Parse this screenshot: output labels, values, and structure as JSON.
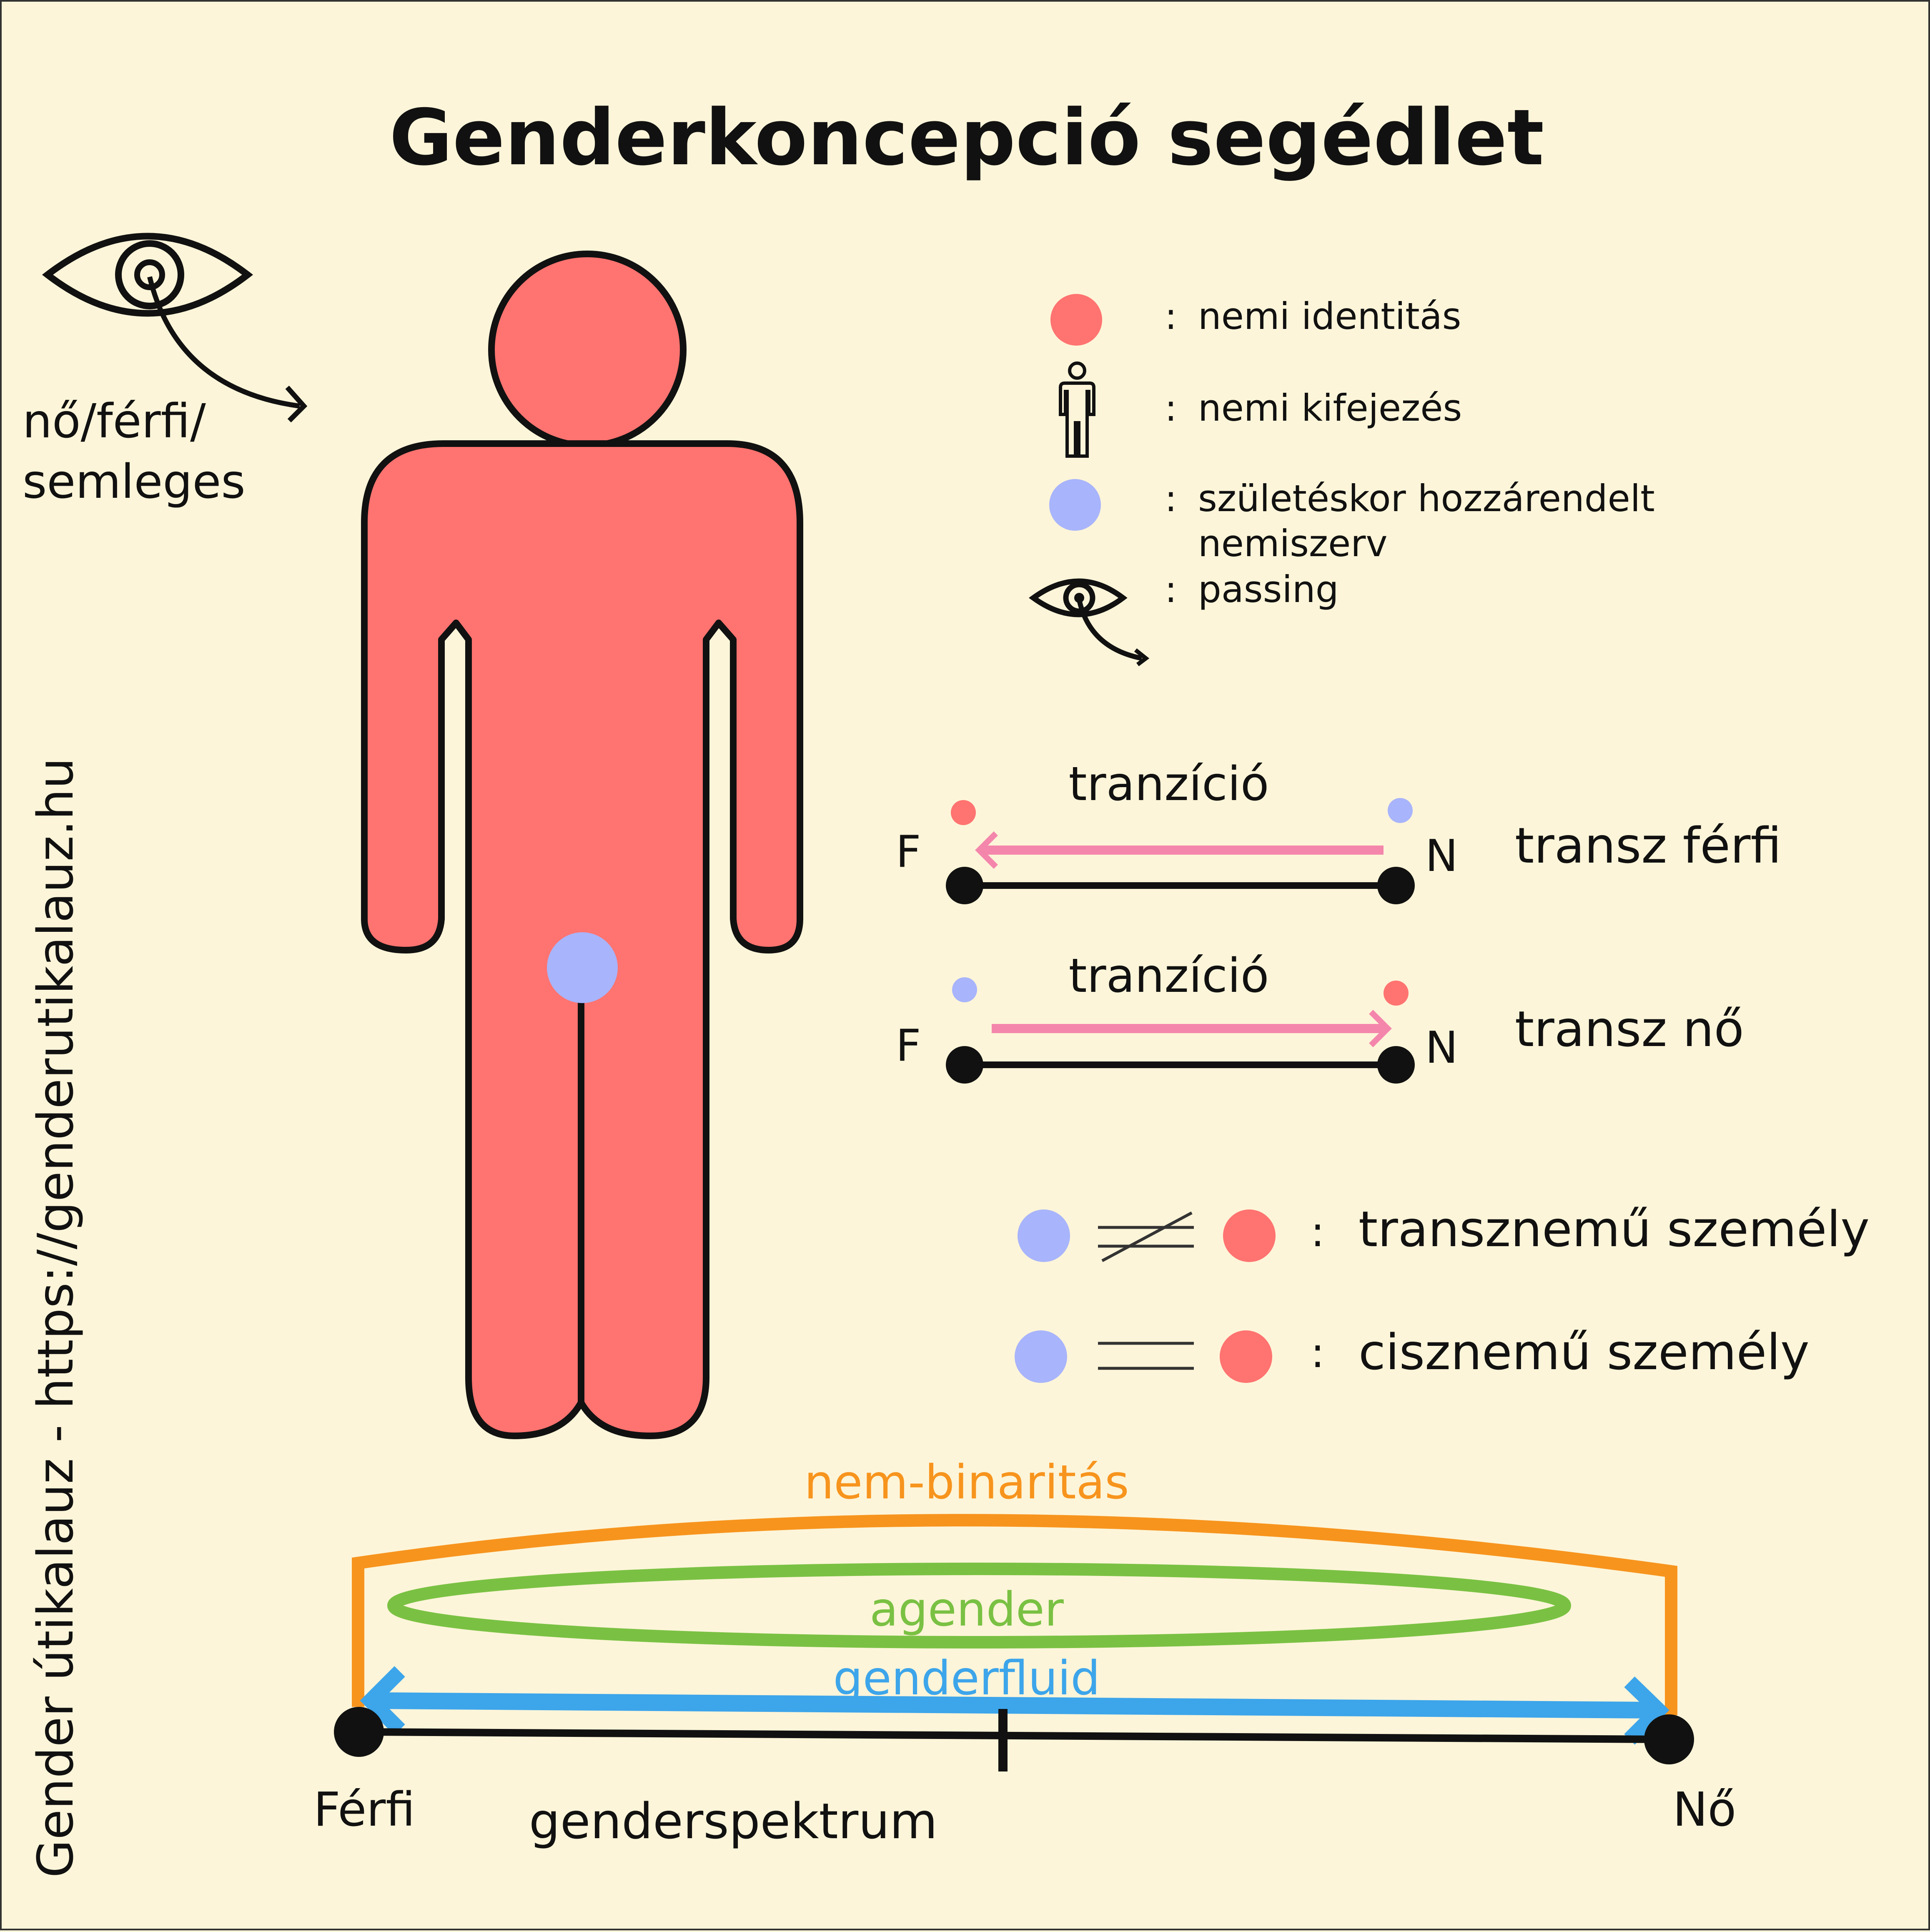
{
  "title": "Genderkoncepció segédlet",
  "side_caption": "Gender útikalauz - https://genderutikalauz.hu",
  "passing_label_line1": "nő/férfi/",
  "passing_label_line2": "semleges",
  "legend": {
    "separator": ":",
    "identity": "nemi identitás",
    "expression": "nemi kifejezés",
    "assigned_line1": "születéskor hozzárendelt",
    "assigned_line2": "nemiszerv",
    "passing": "passing"
  },
  "transitions": [
    {
      "caption": "tranzíció",
      "left": "F",
      "right": "N",
      "label": "transz férfi",
      "direction": "to-left"
    },
    {
      "caption": "tranzíció",
      "left": "F",
      "right": "N",
      "label": "transz nő",
      "direction": "to-right"
    }
  ],
  "relations": {
    "transgender": "transznemű személy",
    "cisgender": "cisznemű személy"
  },
  "spectrum": {
    "nonbinary": "nem-binaritás",
    "agender": "agender",
    "genderfluid": "genderfluid",
    "left": "Férfi",
    "right": "Nő",
    "name": "genderspektrum"
  },
  "colors": {
    "background": "#fdf5d9",
    "identity": "#ff7370",
    "assigned": "#a8b4fb",
    "transition_arrow": "#f486ac",
    "nonbinary": "#f7941d",
    "agender": "#7ac143",
    "genderfluid": "#3da5ea"
  }
}
